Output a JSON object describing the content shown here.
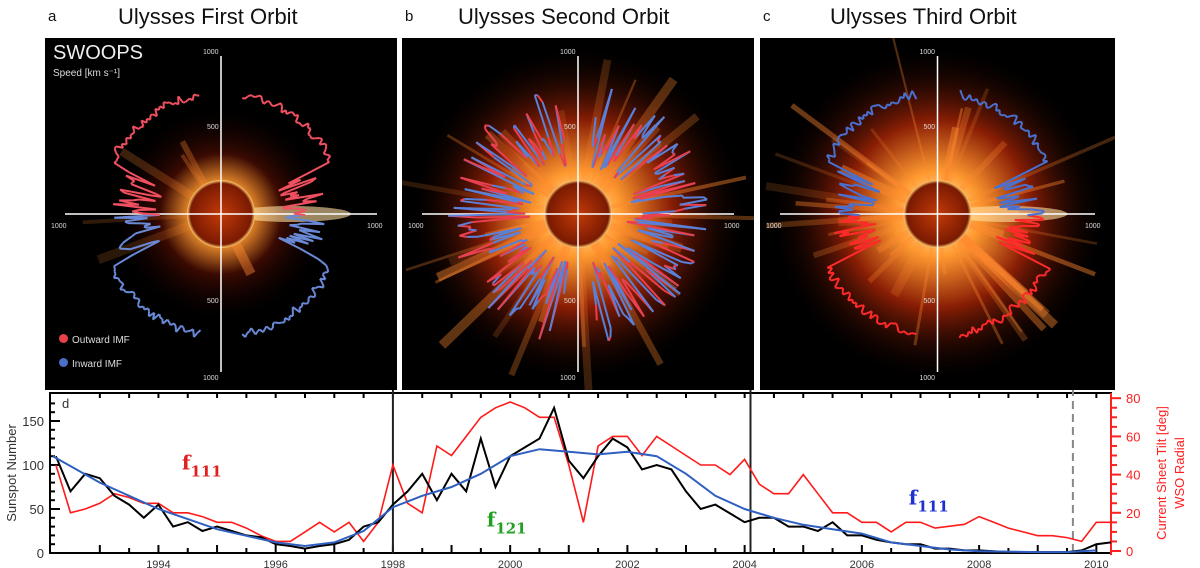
{
  "panels": [
    {
      "letter": "a",
      "title": "Ulysses First Orbit",
      "instrument": "SWOOPS",
      "speed_label": "Speed [km s⁻¹]",
      "legend": [
        {
          "label": "Outward IMF",
          "color": "#e8414b"
        },
        {
          "label": "Inward IMF",
          "color": "#4a6fc8"
        }
      ],
      "axis_ticks": [
        "1000",
        "500",
        "500",
        "1000",
        "1000",
        "1000"
      ]
    },
    {
      "letter": "b",
      "title": "Ulysses Second Orbit",
      "axis_ticks": [
        "1000",
        "500",
        "500",
        "1000",
        "1000",
        "1000"
      ]
    },
    {
      "letter": "c",
      "title": "Ulysses Third Orbit",
      "axis_ticks": [
        "1000",
        "500",
        "500",
        "1000",
        "1000",
        "1000"
      ]
    }
  ],
  "chart_data": {
    "type": "line",
    "panel_letter": "d",
    "ylabel": "Sunspot Number",
    "ylabel_right": "Current Sheet Tilt [deg]",
    "ylabel_right2": "WSO Radial",
    "xlim": [
      1992.15,
      2010.25
    ],
    "ylim": [
      0,
      175
    ],
    "ylim_right": [
      0,
      80
    ],
    "xticks": [
      "1994",
      "1996",
      "1998",
      "2000",
      "2002",
      "2004",
      "2006",
      "2008",
      "2010"
    ],
    "yticks": [
      "0",
      "50",
      "100",
      "150"
    ],
    "yticks_right": [
      "0",
      "20",
      "40",
      "60",
      "80"
    ],
    "colors": {
      "sunspot": "#000000",
      "tilt": "#ff1a1a",
      "smoothed": "#2f5fc0"
    },
    "vlines": [
      {
        "x": 1998.0,
        "style": "solid"
      },
      {
        "x": 2004.1,
        "style": "solid"
      },
      {
        "x": 2009.6,
        "style": "dashed"
      }
    ],
    "annotations": [
      {
        "text": "f",
        "sub": "111",
        "x": 1994.4,
        "y": 95,
        "color": "#e02020"
      },
      {
        "text": "f",
        "sub": "121",
        "x": 1999.6,
        "y": 30,
        "color": "#20a020"
      },
      {
        "text": "f",
        "sub": "111",
        "x": 2006.8,
        "y": 55,
        "color": "#2030d0"
      }
    ],
    "sunspot": {
      "x": [
        1992.25,
        1992.5,
        1992.75,
        1993.0,
        1993.25,
        1993.5,
        1993.75,
        1994.0,
        1994.25,
        1994.5,
        1994.75,
        1995.0,
        1995.25,
        1995.5,
        1995.75,
        1996.0,
        1996.25,
        1996.5,
        1996.75,
        1997.0,
        1997.25,
        1997.5,
        1997.75,
        1998.0,
        1998.25,
        1998.5,
        1998.75,
        1999.0,
        1999.25,
        1999.5,
        1999.75,
        2000.0,
        2000.25,
        2000.5,
        2000.75,
        2001.0,
        2001.25,
        2001.5,
        2001.75,
        2002.0,
        2002.25,
        2002.5,
        2002.75,
        2003.0,
        2003.25,
        2003.5,
        2003.75,
        2004.0,
        2004.25,
        2004.5,
        2004.75,
        2005.0,
        2005.25,
        2005.5,
        2005.75,
        2006.0,
        2006.25,
        2006.5,
        2006.75,
        2007.0,
        2007.25,
        2007.5,
        2007.75,
        2008.0,
        2008.25,
        2008.5,
        2008.75,
        2009.0,
        2009.25,
        2009.5,
        2009.75,
        2010.0,
        2010.25
      ],
      "y": [
        110,
        70,
        90,
        85,
        65,
        55,
        40,
        55,
        30,
        35,
        25,
        30,
        25,
        20,
        18,
        10,
        8,
        5,
        8,
        10,
        15,
        30,
        35,
        55,
        70,
        90,
        60,
        90,
        70,
        130,
        75,
        110,
        120,
        130,
        165,
        105,
        85,
        110,
        130,
        120,
        95,
        100,
        95,
        70,
        50,
        55,
        45,
        35,
        40,
        40,
        30,
        30,
        25,
        35,
        20,
        20,
        15,
        12,
        10,
        10,
        5,
        5,
        3,
        3,
        2,
        1,
        1,
        1,
        1,
        1,
        3,
        10,
        12
      ]
    },
    "tilt": {
      "x": [
        1992.25,
        1992.5,
        1992.75,
        1993.0,
        1993.25,
        1993.5,
        1993.75,
        1994.0,
        1994.25,
        1994.5,
        1994.75,
        1995.0,
        1995.25,
        1995.5,
        1995.75,
        1996.0,
        1996.25,
        1996.5,
        1996.75,
        1997.0,
        1997.25,
        1997.5,
        1997.75,
        1998.0,
        1998.25,
        1998.5,
        1998.75,
        1999.0,
        1999.25,
        1999.5,
        1999.75,
        2000.0,
        2000.25,
        2000.5,
        2000.75,
        2001.0,
        2001.25,
        2001.5,
        2001.75,
        2002.0,
        2002.25,
        2002.5,
        2002.75,
        2003.0,
        2003.25,
        2003.5,
        2003.75,
        2004.0,
        2004.25,
        2004.5,
        2004.75,
        2005.0,
        2005.25,
        2005.5,
        2005.75,
        2006.0,
        2006.25,
        2006.5,
        2006.75,
        2007.0,
        2007.25,
        2007.5,
        2007.75,
        2008.0,
        2008.25,
        2008.5,
        2008.75,
        2009.0,
        2009.25,
        2009.5,
        2009.75,
        2010.0,
        2010.25
      ],
      "y": [
        45,
        20,
        22,
        25,
        30,
        28,
        25,
        25,
        20,
        20,
        18,
        15,
        15,
        12,
        8,
        5,
        5,
        10,
        15,
        10,
        15,
        5,
        15,
        45,
        25,
        20,
        55,
        50,
        60,
        70,
        75,
        78,
        75,
        70,
        70,
        45,
        15,
        55,
        60,
        60,
        50,
        60,
        55,
        50,
        45,
        45,
        40,
        48,
        35,
        30,
        30,
        40,
        30,
        20,
        20,
        15,
        15,
        10,
        15,
        15,
        12,
        13,
        14,
        18,
        15,
        12,
        10,
        8,
        8,
        7,
        5,
        15,
        15
      ]
    },
    "smoothed": {
      "x": [
        1992.2,
        1993,
        1994,
        1995,
        1996,
        1996.5,
        1997,
        1997.5,
        1998,
        1998.5,
        1999,
        1999.5,
        2000,
        2000.5,
        2001,
        2001.5,
        2002,
        2002.5,
        2003,
        2003.5,
        2004,
        2004.5,
        2005,
        2005.5,
        2006,
        2006.5,
        2007,
        2007.5,
        2008,
        2009,
        2009.5,
        2010
      ],
      "y": [
        110,
        80,
        50,
        27,
        12,
        8,
        12,
        25,
        52,
        65,
        75,
        90,
        110,
        118,
        115,
        112,
        115,
        110,
        90,
        65,
        50,
        40,
        32,
        27,
        22,
        12,
        8,
        4,
        2,
        1,
        1,
        3
      ]
    }
  }
}
